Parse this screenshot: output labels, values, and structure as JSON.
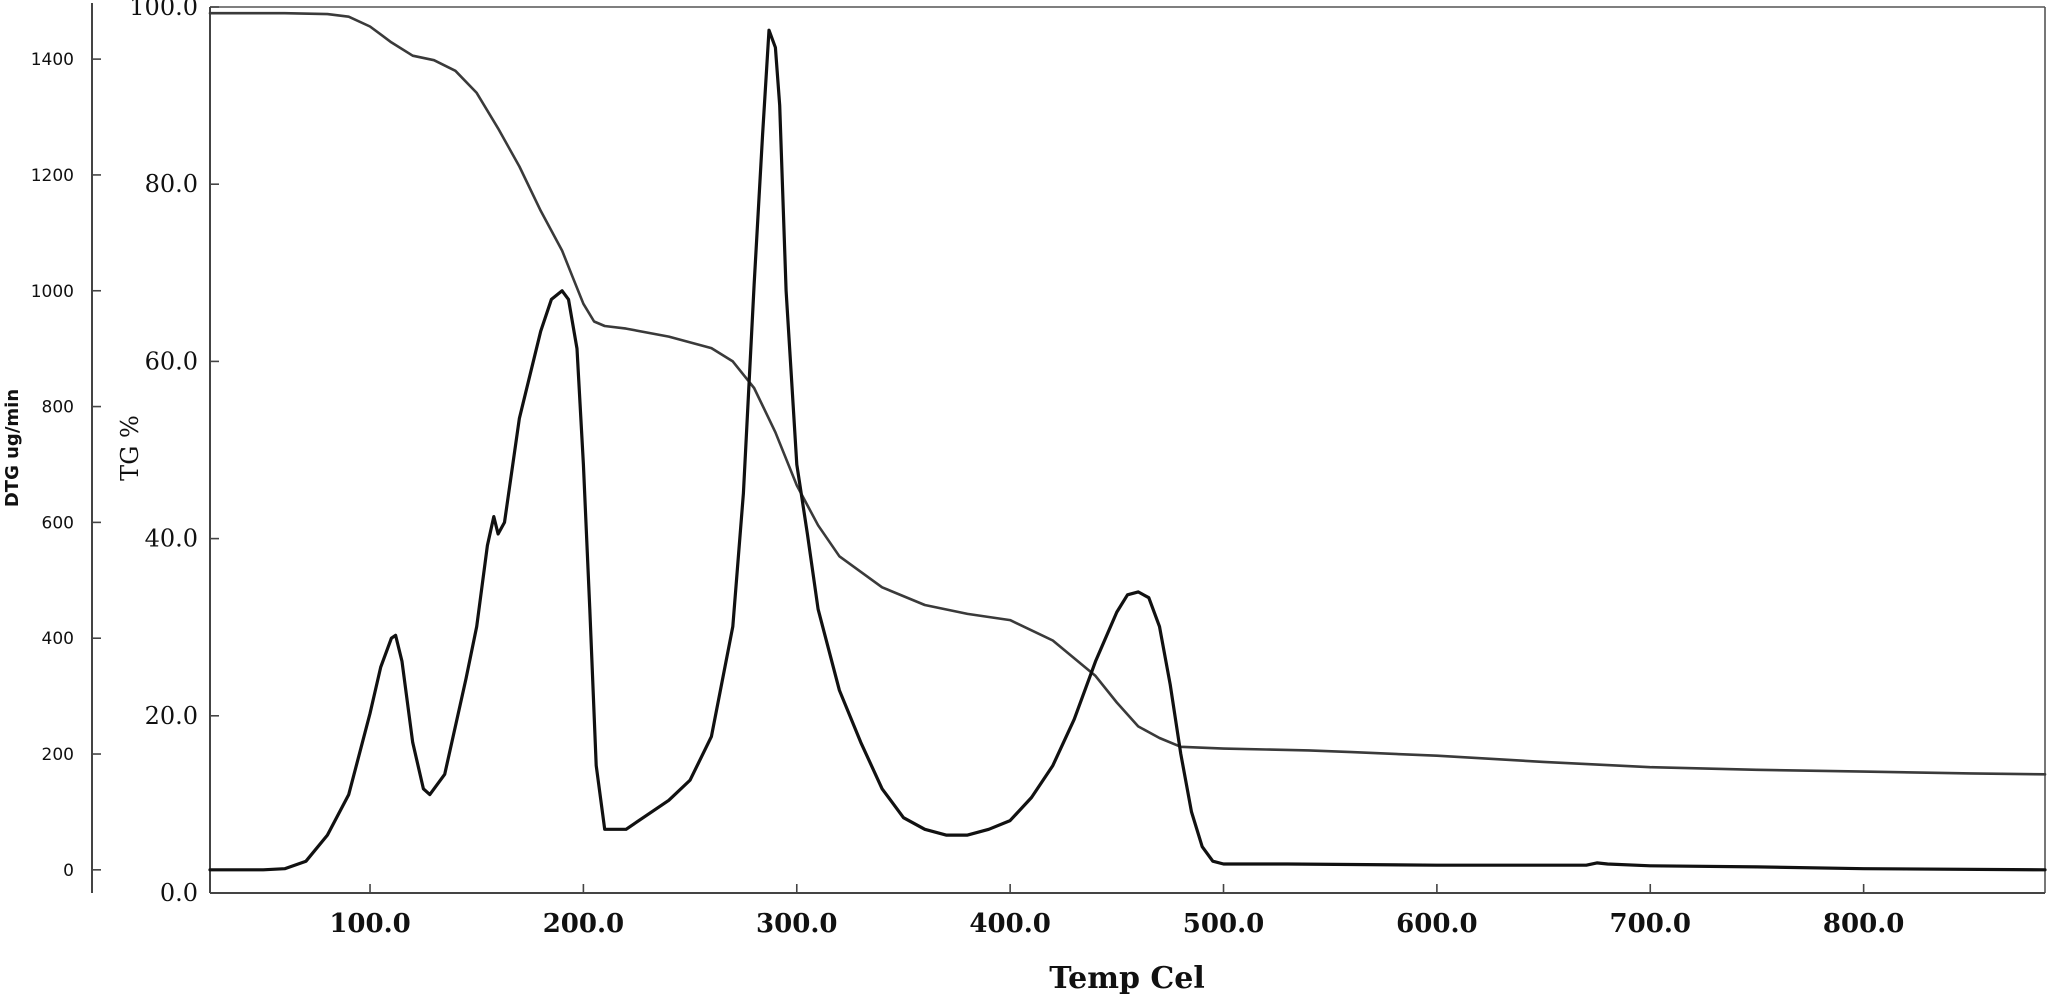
{
  "chart_data": {
    "type": "line",
    "title": "",
    "xlabel": "Temp Cel",
    "ylabel_left_outer": "DTG ug/min",
    "ylabel_left_inner": "TG %",
    "xlim": [
      25,
      885
    ],
    "ylim_tg": [
      0,
      100
    ],
    "ylim_dtg": [
      -40,
      1490
    ],
    "x_ticks": [
      {
        "value": 100,
        "label": "100.0"
      },
      {
        "value": 200,
        "label": "200.0"
      },
      {
        "value": 300,
        "label": "300.0"
      },
      {
        "value": 400,
        "label": "400.0"
      },
      {
        "value": 500,
        "label": "500.0"
      },
      {
        "value": 600,
        "label": "600.0"
      },
      {
        "value": 700,
        "label": "700.0"
      },
      {
        "value": 800,
        "label": "800.0"
      }
    ],
    "tg_ticks": [
      {
        "value": 0,
        "label": "0.0"
      },
      {
        "value": 20,
        "label": "20.0"
      },
      {
        "value": 40,
        "label": "40.0"
      },
      {
        "value": 60,
        "label": "60.0"
      },
      {
        "value": 80,
        "label": "80.0"
      },
      {
        "value": 100,
        "label": "100.0"
      }
    ],
    "dtg_ticks": [
      {
        "value": 0,
        "label": "0"
      },
      {
        "value": 200,
        "label": "200"
      },
      {
        "value": 400,
        "label": "400"
      },
      {
        "value": 600,
        "label": "600"
      },
      {
        "value": 800,
        "label": "800"
      },
      {
        "value": 1000,
        "label": "1000"
      },
      {
        "value": 1200,
        "label": "1200"
      },
      {
        "value": 1400,
        "label": "1400"
      }
    ],
    "grid": false,
    "series": [
      {
        "axis": "TG",
        "color": "#3a3a3a",
        "x": [
          25,
          60,
          80,
          90,
          100,
          110,
          120,
          130,
          140,
          150,
          160,
          170,
          180,
          190,
          195,
          200,
          205,
          210,
          220,
          240,
          260,
          270,
          280,
          290,
          300,
          310,
          320,
          340,
          360,
          380,
          400,
          420,
          440,
          450,
          460,
          470,
          480,
          500,
          520,
          540,
          560,
          600,
          650,
          700,
          750,
          800,
          850,
          885
        ],
        "values": [
          99.3,
          99.3,
          99.2,
          98.9,
          97.8,
          96.0,
          94.5,
          94.0,
          92.8,
          90.3,
          86.3,
          82.0,
          77.0,
          72.5,
          69.5,
          66.5,
          64.5,
          64.0,
          63.7,
          62.8,
          61.5,
          60.0,
          57.0,
          52.0,
          46.0,
          41.5,
          38.0,
          34.5,
          32.5,
          31.5,
          30.8,
          28.5,
          24.5,
          21.5,
          18.8,
          17.5,
          16.5,
          16.3,
          16.2,
          16.1,
          15.9,
          15.5,
          14.8,
          14.2,
          13.9,
          13.7,
          13.5,
          13.4
        ]
      },
      {
        "axis": "DTG",
        "color": "#111111",
        "x": [
          25,
          50,
          60,
          70,
          80,
          90,
          100,
          105,
          110,
          112,
          115,
          120,
          125,
          128,
          135,
          145,
          150,
          155,
          158,
          160,
          163,
          170,
          180,
          185,
          190,
          193,
          197,
          200,
          203,
          206,
          210,
          220,
          230,
          240,
          250,
          260,
          270,
          275,
          280,
          284,
          287,
          290,
          292,
          295,
          300,
          305,
          310,
          320,
          330,
          340,
          350,
          360,
          370,
          380,
          390,
          400,
          410,
          420,
          430,
          440,
          450,
          455,
          460,
          465,
          470,
          475,
          480,
          485,
          490,
          495,
          500,
          530,
          600,
          670,
          675,
          680,
          700,
          750,
          800,
          885
        ],
        "values": [
          0,
          0,
          2,
          15,
          60,
          130,
          270,
          350,
          400,
          405,
          360,
          220,
          140,
          130,
          165,
          330,
          420,
          560,
          610,
          580,
          600,
          780,
          930,
          985,
          1000,
          985,
          900,
          700,
          450,
          180,
          70,
          70,
          95,
          120,
          155,
          230,
          420,
          650,
          1010,
          1270,
          1450,
          1420,
          1320,
          1000,
          700,
          580,
          450,
          310,
          220,
          140,
          90,
          70,
          60,
          60,
          70,
          85,
          125,
          180,
          260,
          360,
          445,
          475,
          480,
          470,
          420,
          320,
          200,
          100,
          40,
          15,
          10,
          10,
          8,
          8,
          12,
          10,
          7,
          5,
          2,
          0
        ]
      }
    ]
  }
}
